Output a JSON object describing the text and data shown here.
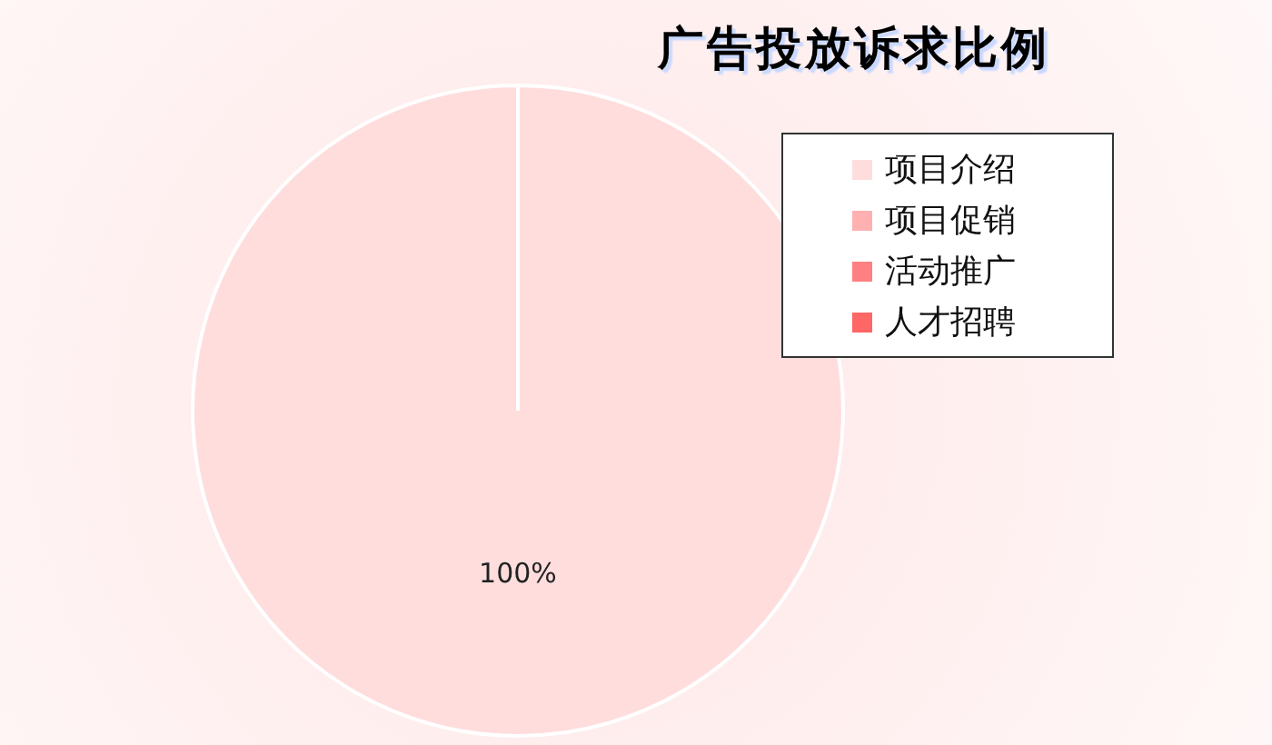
{
  "chart_data": {
    "type": "pie",
    "title": "广告投放诉求比例",
    "categories": [
      "项目介绍",
      "项目促销",
      "活动推广",
      "人才招聘"
    ],
    "values": [
      100,
      0,
      0,
      0
    ],
    "colors": [
      "#ffdddd",
      "#ffb0b0",
      "#ff8080",
      "#ff6666"
    ],
    "value_labels": [
      "100%",
      null,
      null,
      null
    ],
    "legend": "top right"
  }
}
